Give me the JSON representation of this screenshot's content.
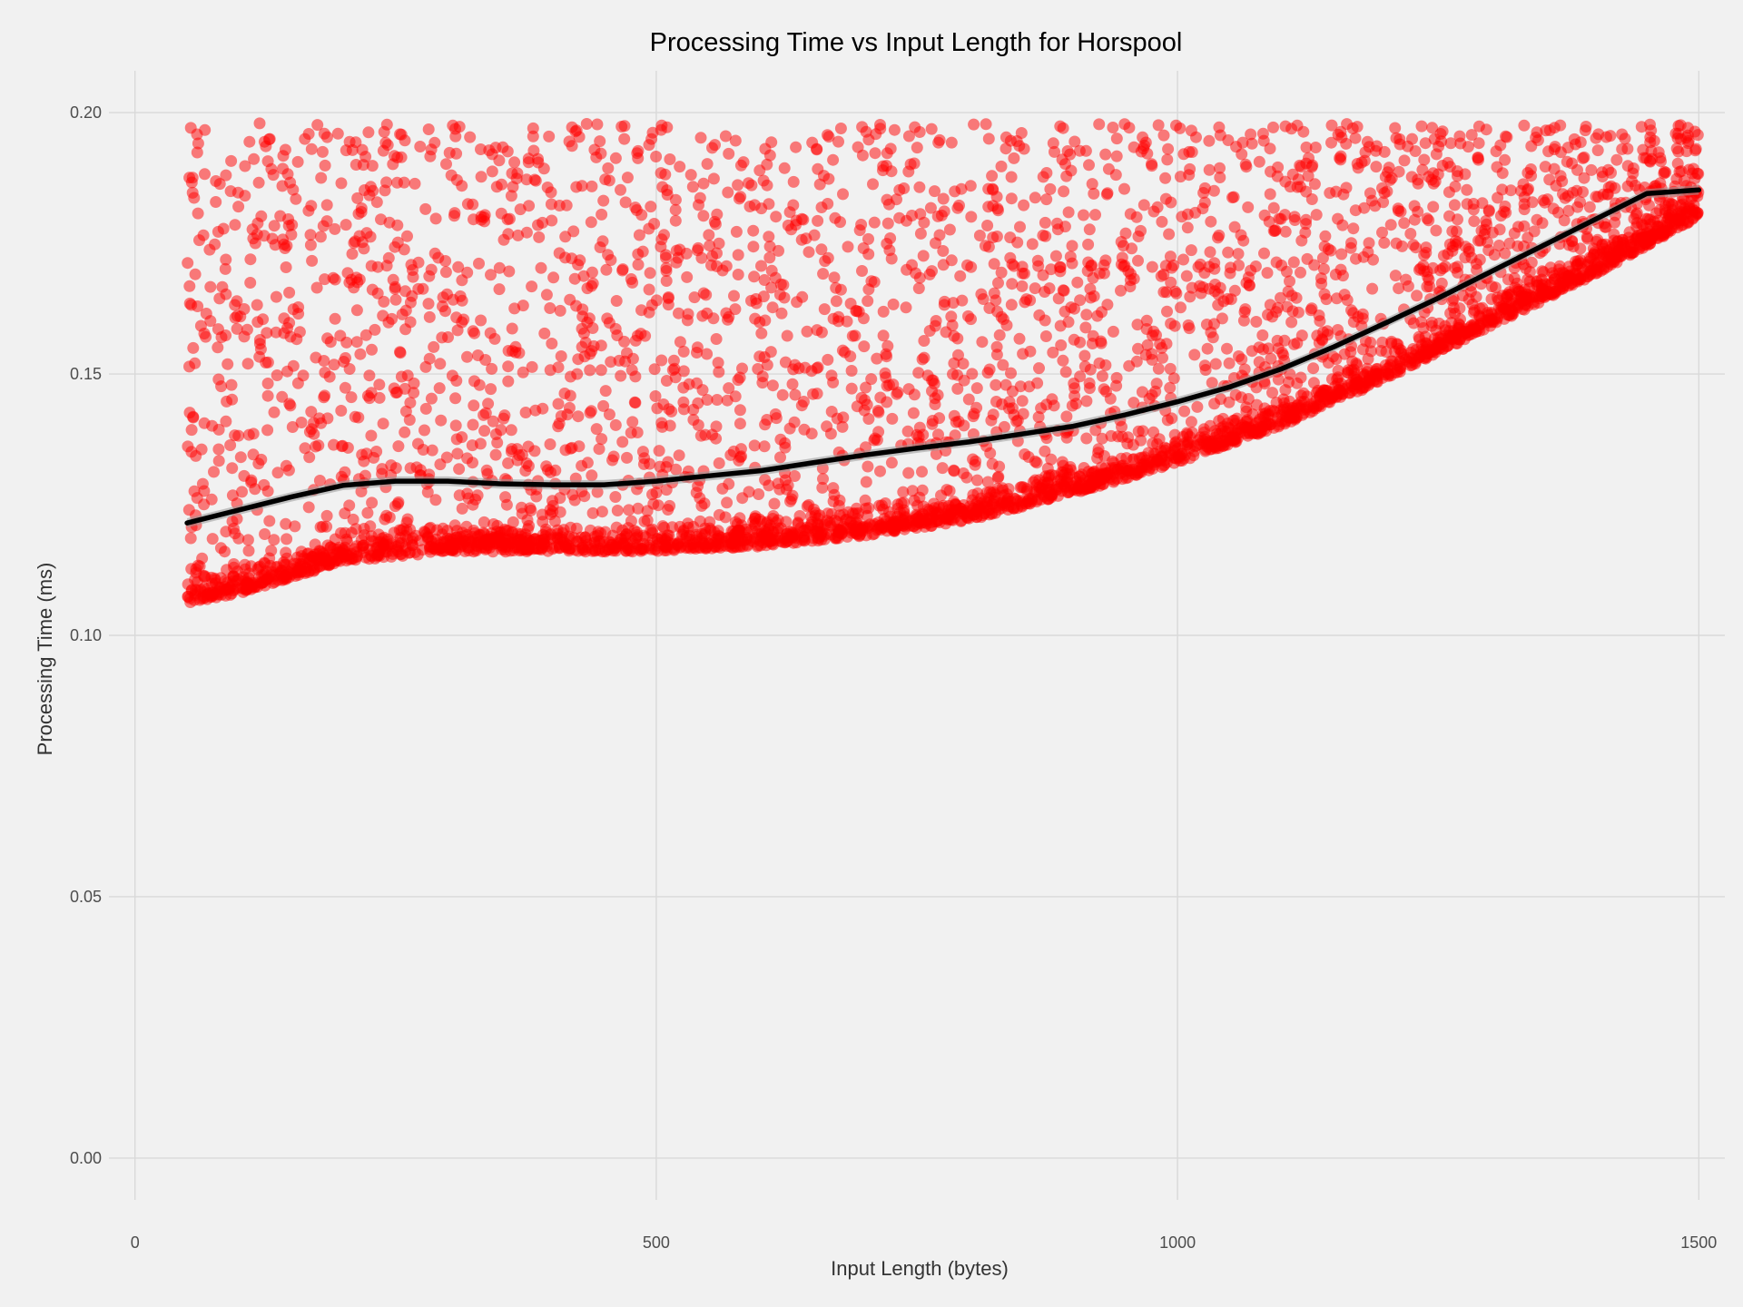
{
  "chart_data": {
    "type": "scatter",
    "title": "Processing Time vs Input Length for Horspool",
    "xlabel": "Input Length (bytes)",
    "ylabel": "Processing Time (ms)",
    "xlim": [
      -25,
      1525
    ],
    "ylim": [
      -0.008,
      0.208
    ],
    "x_ticks": [
      0,
      500,
      1000,
      1500
    ],
    "x_tick_labels": [
      "0",
      "500",
      "1000",
      "1500"
    ],
    "y_ticks": [
      0.0,
      0.05,
      0.1,
      0.15,
      0.2
    ],
    "y_tick_labels": [
      "0.00",
      "0.05",
      "0.10",
      "0.15",
      "0.20"
    ],
    "grid": true,
    "legend": "none",
    "point_color": "#ff0000",
    "point_opacity": 0.5,
    "line_color": "#000000",
    "confidence_band_color": "#999999",
    "x_range": [
      50,
      1500
    ],
    "y_range": [
      0.103,
      0.198
    ],
    "approx_point_count": 5000,
    "lower_edge": {
      "x": [
        50,
        100,
        200,
        300,
        400,
        500,
        600,
        700,
        800,
        900,
        1000,
        1100,
        1200,
        1300,
        1400,
        1500
      ],
      "y": [
        0.106,
        0.108,
        0.114,
        0.116,
        0.116,
        0.116,
        0.117,
        0.119,
        0.122,
        0.127,
        0.133,
        0.14,
        0.149,
        0.159,
        0.169,
        0.18
      ]
    },
    "series": [
      {
        "name": "",
        "type": "smooth",
        "x": [
          50,
          100,
          150,
          200,
          250,
          300,
          350,
          400,
          450,
          500,
          550,
          600,
          650,
          700,
          750,
          800,
          850,
          900,
          950,
          1000,
          1050,
          1100,
          1150,
          1200,
          1250,
          1300,
          1350,
          1400,
          1450,
          1500
        ],
        "y": [
          0.1215,
          0.124,
          0.1265,
          0.1287,
          0.1295,
          0.1295,
          0.129,
          0.1288,
          0.1288,
          0.1295,
          0.1305,
          0.1315,
          0.133,
          0.1345,
          0.1358,
          0.137,
          0.1385,
          0.14,
          0.1422,
          0.1447,
          0.1475,
          0.151,
          0.1552,
          0.1598,
          0.1645,
          0.1695,
          0.1745,
          0.1795,
          0.1845,
          0.1852
        ]
      }
    ]
  }
}
